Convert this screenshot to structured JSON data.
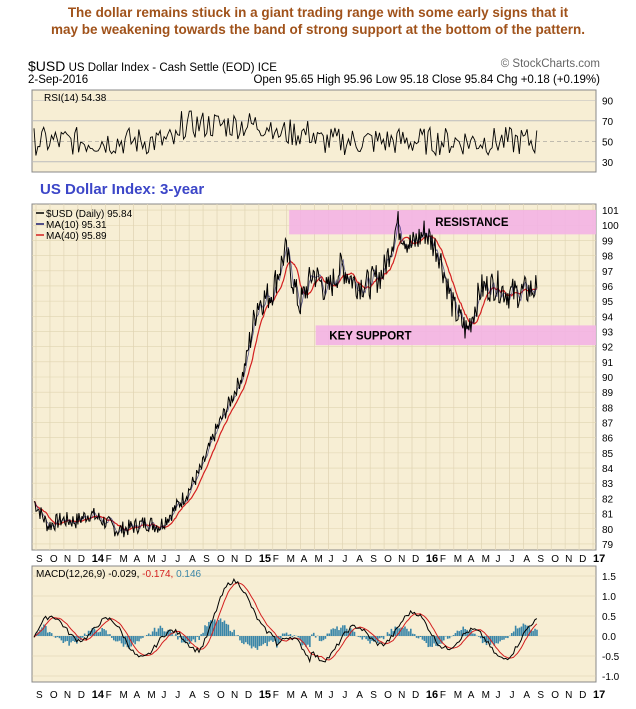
{
  "headline": {
    "line1": "The dollar remains stiuck in a giant trading range with some early signs that it",
    "line2": "may be weakening towards the band of strong support at the bottom of the pattern."
  },
  "header": {
    "symbol": "$USD",
    "name": "US Dollar Index - Cash Settle (EOD)",
    "exchange": "ICE",
    "date": "2-Sep-2016",
    "source": "© StockCharts.com",
    "ohlc_text": "Open 95.65   High 95.96   Low 95.18   Close 95.84   Chg +0.18 (+0.19%)"
  },
  "colors": {
    "panel_bg": "#f7eed4",
    "price": "#000000",
    "ma10": "#1a1a6e",
    "ma40": "#d42020",
    "band": "#f3b3e4",
    "title_blue": "#3c46c8",
    "macd_hist": "#3a86a8",
    "rsi_fill": "#5a7a3a"
  },
  "chart_data": {
    "type": "line",
    "title": "US Dollar Index: 3-year",
    "x_labels": [
      "S",
      "O",
      "N",
      "D",
      "14",
      "F",
      "M",
      "A",
      "M",
      "J",
      "J",
      "A",
      "S",
      "O",
      "N",
      "D",
      "15",
      "F",
      "M",
      "A",
      "M",
      "J",
      "J",
      "A",
      "S",
      "O",
      "N",
      "D",
      "16",
      "F",
      "M",
      "A",
      "M",
      "J",
      "J",
      "A",
      "S",
      "O",
      "N",
      "D",
      "17"
    ],
    "price_panel": {
      "legend": [
        "$USD (Daily) 95.84",
        "MA(10) 95.31",
        "MA(40) 95.89"
      ],
      "yticks": [
        79,
        80,
        81,
        82,
        83,
        84,
        85,
        86,
        87,
        88,
        89,
        90,
        91,
        92,
        93,
        94,
        95,
        96,
        97,
        98,
        99,
        100,
        101
      ],
      "ylim": [
        78.6,
        101.4
      ],
      "series_monthly_close": [
        81.8,
        80.2,
        80.6,
        80.5,
        81.0,
        80.5,
        79.9,
        80.1,
        80.4,
        80.2,
        81.2,
        82.4,
        84.0,
        86.4,
        88.3,
        90.3,
        94.9,
        95.5,
        98.3,
        94.7,
        96.9,
        95.6,
        97.3,
        96.2,
        96.1,
        96.9,
        100.1,
        98.6,
        99.6,
        98.2,
        94.6,
        93.0,
        95.8,
        96.1,
        95.5,
        95.6,
        95.84
      ],
      "annotations": [
        {
          "text": "RESISTANCE",
          "band": [
            99.4,
            101.0
          ]
        },
        {
          "text": "KEY SUPPORT",
          "band": [
            92.1,
            93.4
          ]
        }
      ]
    },
    "rsi_panel": {
      "label": "RSI(14) 54.38",
      "yticks": [
        30,
        50,
        70,
        90
      ],
      "ylim": [
        20,
        100
      ]
    },
    "macd_panel": {
      "legend": {
        "name": "MACD(12,26,9)",
        "macd": "-0.029",
        "signal": "-0.174",
        "hist": "0.146"
      },
      "yticks": [
        "-1.0",
        "-0.5",
        "0.0",
        "0.5",
        "1.0",
        "1.5"
      ],
      "ylim": [
        -1.15,
        1.75
      ]
    }
  }
}
